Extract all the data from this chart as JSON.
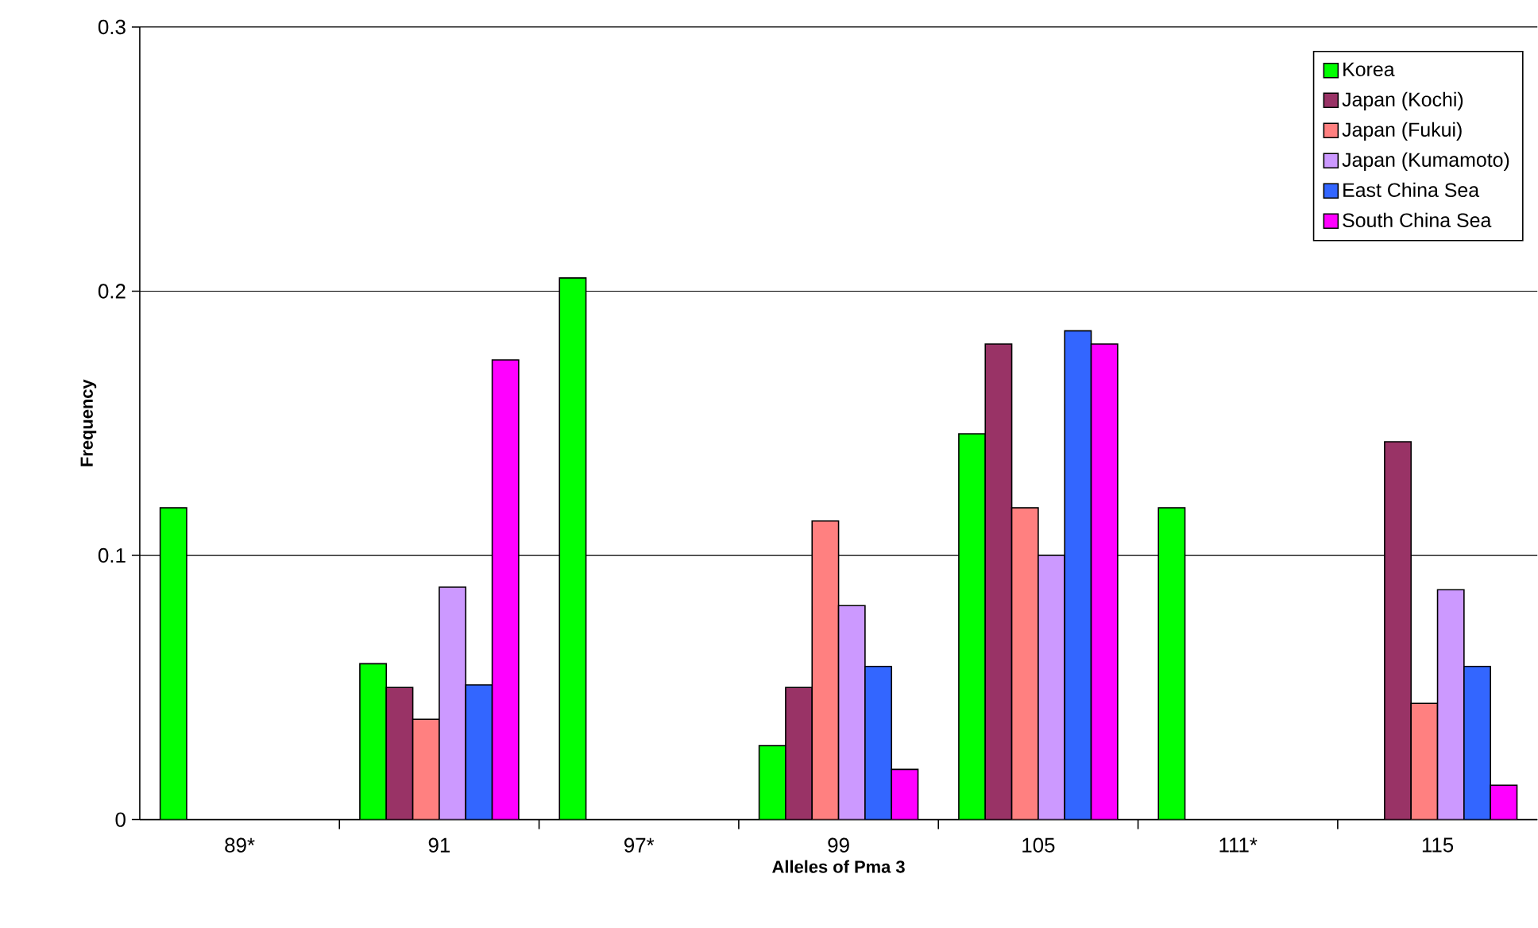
{
  "chart_data": {
    "type": "bar",
    "xlabel": "Alleles of Pma 3",
    "ylabel": "Frequency",
    "categories": [
      "89*",
      "91",
      "97*",
      "99",
      "105",
      "111*",
      "115"
    ],
    "series": [
      {
        "name": "Korea",
        "color": "#00ff00",
        "values": [
          0.118,
          0.059,
          0.205,
          0.028,
          0.146,
          0.118,
          null
        ]
      },
      {
        "name": "Japan (Kochi)",
        "color": "#993366",
        "values": [
          null,
          0.05,
          null,
          0.05,
          0.18,
          null,
          0.143
        ]
      },
      {
        "name": "Japan (Fukui)",
        "color": "#ff8080",
        "values": [
          null,
          0.038,
          null,
          0.113,
          0.118,
          null,
          0.044
        ]
      },
      {
        "name": "Japan (Kumamoto)",
        "color": "#cc99ff",
        "values": [
          null,
          0.088,
          null,
          0.081,
          0.1,
          null,
          0.087
        ]
      },
      {
        "name": "East China Sea",
        "color": "#3366ff",
        "values": [
          null,
          0.051,
          null,
          0.058,
          0.185,
          null,
          0.058
        ]
      },
      {
        "name": "South China Sea",
        "color": "#ff00ff",
        "values": [
          null,
          0.174,
          null,
          0.019,
          0.18,
          null,
          0.013
        ]
      }
    ],
    "ylim": [
      0,
      0.3
    ],
    "yticks": [
      0,
      0.1,
      0.2,
      0.3
    ],
    "grid": "y",
    "legend": "top right"
  }
}
